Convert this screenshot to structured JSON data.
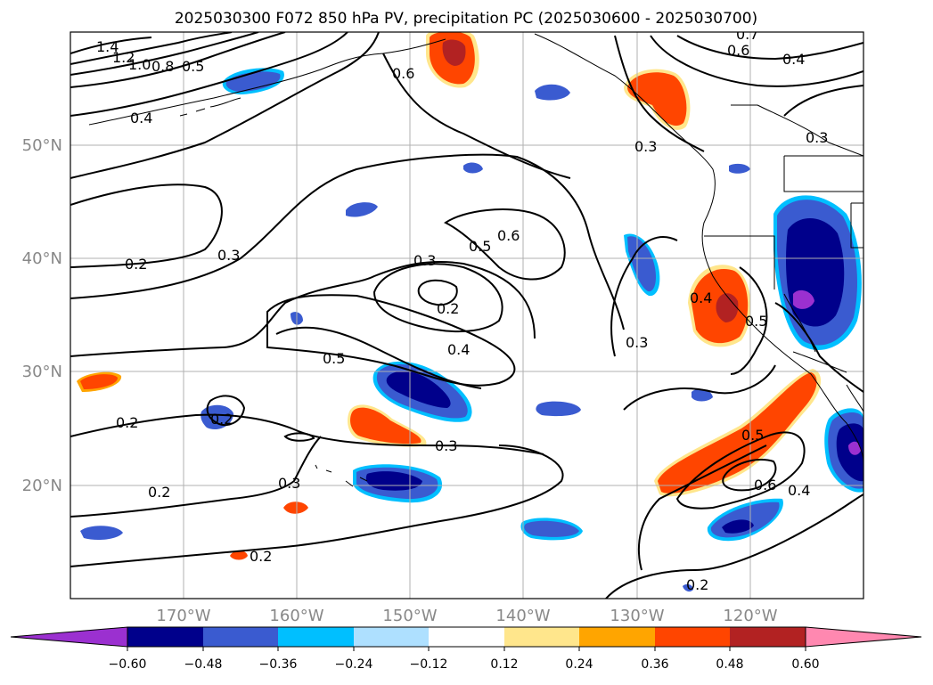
{
  "title": "2025030300 F072 850 hPa PV, precipitation PC (2025030600 - 2025030700)",
  "lat_labels": [
    "50°N",
    "40°N",
    "30°N",
    "20°N"
  ],
  "lon_labels": [
    "170°W",
    "160°W",
    "150°W",
    "140°W",
    "130°W",
    "120°W"
  ],
  "contour_labels": [
    "1.4",
    "1.2",
    "1.0",
    "0.8",
    "0.5",
    "0.4",
    "0.6",
    "0.7",
    "0.6",
    "0.4",
    "0.3",
    "0.3",
    "0.2",
    "0.3",
    "0.5",
    "0.6",
    "0.3",
    "0.2",
    "0.4",
    "0.5",
    "0.3",
    "0.3",
    "0.4",
    "0.5",
    "0.2",
    "0.2",
    "0.3",
    "0.2",
    "0.2",
    "0.5",
    "0.6",
    "0.4",
    "0.2"
  ],
  "colorbar": {
    "ticks": [
      "−0.60",
      "−0.48",
      "−0.36",
      "−0.24",
      "−0.12",
      "0.12",
      "0.24",
      "0.36",
      "0.48",
      "0.60"
    ],
    "colors": [
      "#9b30d0",
      "#00008b",
      "#3a5bd0",
      "#00bfff",
      "#aee0ff",
      "#ffffff",
      "#ffe68c",
      "#ffa500",
      "#ff4500",
      "#b22222",
      "#ff88b0"
    ]
  },
  "colors": {
    "land_lines": "#000000",
    "grid": "#b0b0b0",
    "axis_label": "#888888"
  }
}
